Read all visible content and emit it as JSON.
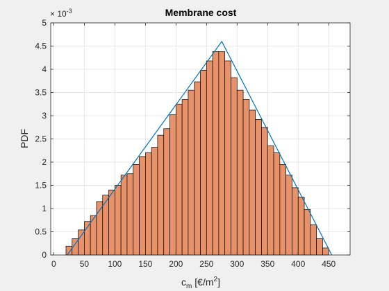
{
  "chart_data": {
    "type": "bar",
    "title": "Membrane cost",
    "ylabel": "PDF",
    "xlabel": {
      "base": "c",
      "sub": "m",
      "unit_open": " [€/m",
      "sup": "2",
      "unit_close": "]"
    },
    "y_exponent_label": {
      "prefix": "× 10",
      "sup": "-3"
    },
    "xlim": [
      -5,
      485
    ],
    "ylim": [
      0,
      5
    ],
    "x_ticks": [
      0,
      50,
      100,
      150,
      200,
      250,
      300,
      350,
      400,
      450
    ],
    "y_ticks": [
      0,
      0.5,
      1,
      1.5,
      2,
      2.5,
      3,
      3.5,
      4,
      4.5,
      5
    ],
    "grid": true,
    "bar_color": "#e8926a",
    "line_color": "#0072bd",
    "bin_edges": [
      20,
      30,
      40,
      50,
      60,
      70,
      80,
      90,
      100,
      110,
      120,
      130,
      140,
      150,
      160,
      170,
      180,
      190,
      200,
      210,
      220,
      230,
      240,
      250,
      260,
      270,
      280,
      290,
      300,
      310,
      320,
      330,
      340,
      350,
      360,
      370,
      380,
      390,
      400,
      410,
      420,
      430,
      440,
      450
    ],
    "values": [
      0.19,
      0.35,
      0.54,
      0.72,
      0.85,
      1.15,
      1.29,
      1.4,
      1.5,
      1.72,
      1.75,
      1.95,
      2.12,
      2.2,
      2.32,
      2.58,
      2.72,
      3.02,
      3.25,
      3.35,
      3.55,
      3.73,
      3.98,
      4.18,
      4.38,
      4.38,
      4.18,
      3.82,
      3.55,
      3.35,
      3.12,
      2.92,
      2.75,
      2.35,
      2.2,
      1.95,
      1.72,
      1.45,
      1.25,
      0.98,
      0.65,
      0.35,
      0.15
    ],
    "pdf_line": {
      "x": [
        22,
        275,
        455
      ],
      "y": [
        0,
        4.6,
        0
      ]
    }
  }
}
